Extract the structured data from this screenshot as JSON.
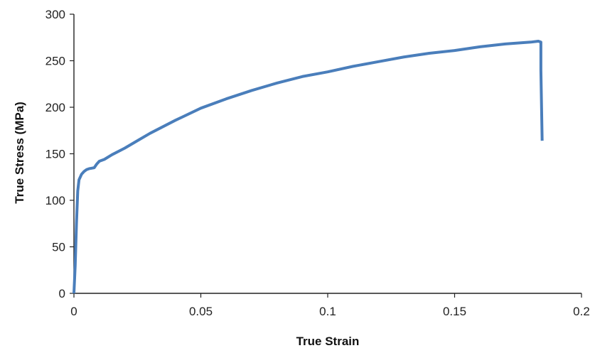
{
  "chart_data": {
    "type": "line",
    "title": "",
    "xlabel": "True Strain",
    "ylabel": "True Stress (MPa)",
    "xlim": [
      0,
      0.2
    ],
    "ylim": [
      0,
      300
    ],
    "x_ticks": [
      "0",
      "0.05",
      "0.1",
      "0.15",
      "0.2"
    ],
    "y_ticks": [
      "0",
      "50",
      "100",
      "150",
      "200",
      "250",
      "300"
    ],
    "x_tick_values": [
      0,
      0.05,
      0.1,
      0.15,
      0.2
    ],
    "y_tick_values": [
      0,
      50,
      100,
      150,
      200,
      250,
      300
    ],
    "grid": false,
    "legend": "none",
    "series": [
      {
        "color": "#4a7ebb",
        "x": [
          0,
          0.0005,
          0.001,
          0.0015,
          0.002,
          0.003,
          0.004,
          0.005,
          0.006,
          0.007,
          0.008,
          0.009,
          0.01,
          0.012,
          0.015,
          0.02,
          0.025,
          0.03,
          0.04,
          0.05,
          0.06,
          0.07,
          0.08,
          0.09,
          0.1,
          0.11,
          0.12,
          0.13,
          0.14,
          0.15,
          0.16,
          0.17,
          0.18,
          0.183,
          0.184,
          0.184,
          0.1845
        ],
        "values": [
          0,
          30,
          75,
          110,
          122,
          128,
          131,
          133,
          134,
          134.5,
          135,
          139,
          142,
          144,
          149,
          156,
          164,
          172,
          186,
          199,
          209,
          218,
          226,
          233,
          238,
          244,
          249,
          254,
          258,
          261,
          265,
          268,
          270,
          271,
          270,
          240,
          164
        ]
      }
    ]
  }
}
